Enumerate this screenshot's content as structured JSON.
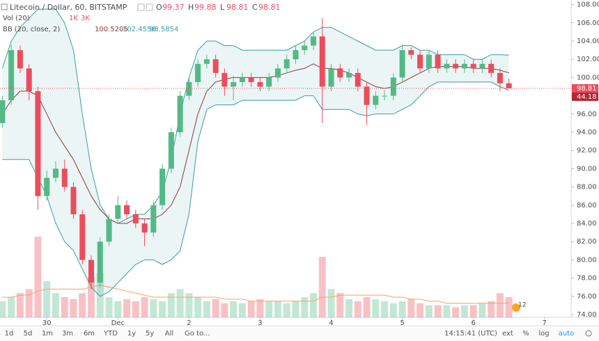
{
  "chart_data": {
    "type": "candlestick",
    "title": "Litecoin / Dollar, 60, BITSTAMP",
    "ohlc_labels": [
      "O",
      "H",
      "L",
      "C"
    ],
    "volume_legend": "Vol (20)",
    "volume_legend_values": [
      "1K",
      "3K"
    ],
    "bb_legend": "BB (20, close, 2)",
    "x": [
      9,
      12,
      15,
      18,
      21,
      24,
      27,
      30,
      33,
      36,
      39,
      42,
      45,
      48,
      51,
      54,
      57,
      60,
      63,
      66,
      69,
      72,
      75,
      78,
      81,
      84,
      87,
      90,
      93,
      96,
      99,
      102,
      105,
      108,
      111,
      114,
      117,
      120,
      123,
      126,
      129,
      132,
      135,
      138,
      141,
      144,
      147,
      150,
      153,
      156,
      159,
      162,
      165,
      168,
      171,
      174,
      177,
      180
    ],
    "open": [
      95,
      97.5,
      103,
      101,
      98.5,
      87,
      89,
      90,
      88,
      85,
      80,
      77.5,
      82,
      84.5,
      86,
      85,
      84,
      83,
      86,
      90,
      94,
      98,
      99.5,
      101.5,
      102,
      100.5,
      99,
      99.5,
      100,
      99.5,
      99,
      100,
      101,
      102,
      103,
      103.5,
      104.5,
      99,
      101,
      100,
      100.5,
      99,
      97,
      98,
      98,
      100,
      103,
      102.5,
      101,
      102.5,
      101,
      101.5,
      101,
      101.5,
      101,
      101.5,
      100.5,
      99.37
    ],
    "high": [
      98,
      103.6,
      103.5,
      101.5,
      99,
      89.8,
      90.8,
      91,
      88.5,
      85.5,
      80.5,
      82.5,
      85,
      87,
      86.5,
      85.5,
      84.5,
      86.5,
      90.5,
      94.5,
      98.5,
      100,
      102,
      102.5,
      102.5,
      101,
      100.2,
      100.5,
      100.5,
      100,
      100.5,
      101.5,
      102.5,
      103.5,
      104,
      105,
      106.5,
      101.5,
      101.5,
      101,
      101,
      99.5,
      98.5,
      98.6,
      100.5,
      103.6,
      103.3,
      103,
      103,
      103,
      102,
      102,
      102,
      102,
      102,
      102,
      101,
      99.88
    ],
    "low": [
      94.5,
      97,
      100.5,
      97.5,
      85.5,
      86.5,
      88.5,
      87.5,
      84.5,
      79.5,
      76.8,
      77,
      81.5,
      84,
      84.5,
      83.5,
      81.5,
      82.5,
      85.5,
      89.5,
      93.5,
      97.5,
      99,
      101,
      100,
      98,
      97.5,
      99,
      99,
      98.5,
      98.5,
      99.5,
      100.5,
      101.5,
      102.5,
      103,
      95,
      98.5,
      99.5,
      99.5,
      98.5,
      94.8,
      96.5,
      97.5,
      97.5,
      99.5,
      102,
      100.5,
      100.5,
      100.5,
      100.5,
      100.5,
      100.5,
      100.5,
      100.5,
      100,
      98.5,
      98.81
    ],
    "close": [
      97.5,
      103,
      101,
      98.5,
      87,
      89,
      90,
      88,
      85,
      80,
      77.5,
      82,
      84.5,
      86,
      85,
      84,
      83,
      86,
      90,
      94,
      98,
      99.5,
      101.5,
      102,
      100.5,
      99,
      99.5,
      100,
      99.5,
      99,
      100,
      101,
      102,
      103,
      103.5,
      104.5,
      99,
      101,
      100,
      100.5,
      99,
      97,
      98,
      98,
      100,
      103,
      102.5,
      101,
      102.5,
      101,
      101.5,
      101,
      101.5,
      101,
      101.5,
      100.5,
      99.37,
      98.81
    ],
    "volume": [
      8,
      10,
      12,
      14,
      40,
      18,
      12,
      10,
      9,
      12,
      20,
      22,
      10,
      8,
      9,
      8,
      10,
      9,
      8,
      12,
      14,
      12,
      10,
      8,
      9,
      7,
      8,
      7,
      8,
      9,
      8,
      8,
      7,
      8,
      10,
      12,
      30,
      14,
      12,
      9,
      8,
      10,
      9,
      8,
      7,
      8,
      9,
      7,
      6,
      6,
      6,
      5,
      6,
      6,
      7,
      8,
      12,
      10
    ],
    "volume_ma": [
      10,
      10,
      11,
      11,
      13,
      14,
      14,
      14,
      14,
      14,
      15,
      16,
      15,
      14,
      13,
      12,
      11,
      10,
      10,
      10,
      10,
      10,
      10,
      10,
      10,
      9,
      9,
      9,
      8,
      8,
      8,
      8,
      8,
      8,
      8,
      8,
      10,
      10,
      11,
      11,
      11,
      11,
      11,
      11,
      10,
      10,
      9,
      9,
      8,
      8,
      7,
      7,
      7,
      7,
      7,
      7,
      7,
      7
    ],
    "bb_upper": [
      101,
      104,
      105.5,
      106.5,
      107.5,
      107.5,
      107.5,
      106,
      103,
      96,
      90,
      86,
      84.5,
      84,
      84.5,
      85,
      85,
      86,
      87.5,
      91,
      96,
      100,
      103,
      104,
      104,
      103.5,
      103.5,
      103,
      103,
      103,
      103,
      103,
      103,
      103.5,
      104,
      105,
      105.5,
      105.5,
      105,
      104.5,
      104,
      103.5,
      103,
      103,
      103,
      103.5,
      103.5,
      103,
      103,
      102.5,
      102.5,
      102.5,
      102.5,
      102,
      102,
      102.5,
      102.5,
      102.4556
    ],
    "bb_middle": [
      96,
      97.5,
      98.5,
      98.5,
      98,
      96,
      94,
      92.5,
      91,
      89,
      87,
      85.5,
      84.5,
      84,
      84,
      84.5,
      84.5,
      84.5,
      85,
      86,
      88,
      92,
      96,
      98.5,
      99.5,
      99.8,
      100,
      100,
      100,
      100,
      100,
      100.2,
      100.5,
      100.8,
      101,
      101.5,
      101,
      101,
      100.8,
      100.5,
      100,
      99.5,
      99,
      98.8,
      99,
      99.5,
      100,
      100.5,
      101,
      101.2,
      101.2,
      101.2,
      101.2,
      101,
      101,
      101,
      100.8,
      100.5205
    ],
    "bb_lower": [
      91,
      91,
      91,
      91,
      89,
      87,
      84,
      82,
      81,
      79,
      77,
      76,
      76.5,
      77.5,
      78.5,
      79.5,
      80,
      80,
      79.5,
      80,
      81,
      85,
      93,
      96.5,
      97,
      97,
      97,
      97.5,
      97.5,
      97.5,
      97.5,
      97.5,
      97.5,
      97.5,
      98,
      98,
      96.5,
      96.5,
      96.5,
      96.5,
      96,
      95.8,
      96,
      96,
      96,
      96.5,
      97,
      98,
      99,
      99.5,
      99.5,
      99.5,
      99.5,
      99.5,
      99.5,
      99.5,
      99,
      98.5854
    ],
    "up_color": "#53b987",
    "down_color": "#eb4d5c",
    "band_color": "#3a9e9e",
    "middle_color": "#8b3a3a",
    "volume_ma_color": "#f7a35c",
    "xlim": [
      8.2,
      201
    ],
    "ylim": [
      73.7,
      108.5
    ],
    "xticks": [
      {
        "value": 24,
        "label": "30"
      },
      {
        "value": 48,
        "label": "Dec"
      },
      {
        "value": 72,
        "label": "2"
      },
      {
        "value": 96,
        "label": "3"
      },
      {
        "value": 120,
        "label": "4"
      },
      {
        "value": 144,
        "label": "5"
      },
      {
        "value": 168,
        "label": "6"
      },
      {
        "value": 192,
        "label": "7"
      }
    ],
    "yticks": [
      {
        "value": 74,
        "label": "74.00"
      },
      {
        "value": 76,
        "label": "76.00"
      },
      {
        "value": 78,
        "label": "78.00"
      },
      {
        "value": 80,
        "label": "80.00"
      },
      {
        "value": 82,
        "label": "82.00"
      },
      {
        "value": 84,
        "label": "84.00"
      },
      {
        "value": 86,
        "label": "86.00"
      },
      {
        "value": 88,
        "label": "88.00"
      },
      {
        "value": 90,
        "label": "90.00"
      },
      {
        "value": 92,
        "label": "92.00"
      },
      {
        "value": 94,
        "label": "94.00"
      },
      {
        "value": 96,
        "label": "96.00"
      },
      {
        "value": 98,
        "label": "98.00"
      },
      {
        "value": 100,
        "label": "100.00"
      },
      {
        "value": 102,
        "label": "102.00"
      },
      {
        "value": 104,
        "label": "104.00"
      },
      {
        "value": 106,
        "label": "106.00"
      },
      {
        "value": 108,
        "label": "108.00"
      }
    ],
    "grid": false,
    "secondary_price_label": "44.18",
    "badge": "12",
    "toolbar": {
      "ranges": [
        "1d",
        "5d",
        "1m",
        "3m",
        "6m",
        "YTD",
        "1y",
        "5y",
        "All"
      ],
      "goto": "Go to...",
      "clock": "14:15:41 (UTC)",
      "options": [
        "ext",
        "%",
        "log",
        "auto"
      ]
    }
  }
}
